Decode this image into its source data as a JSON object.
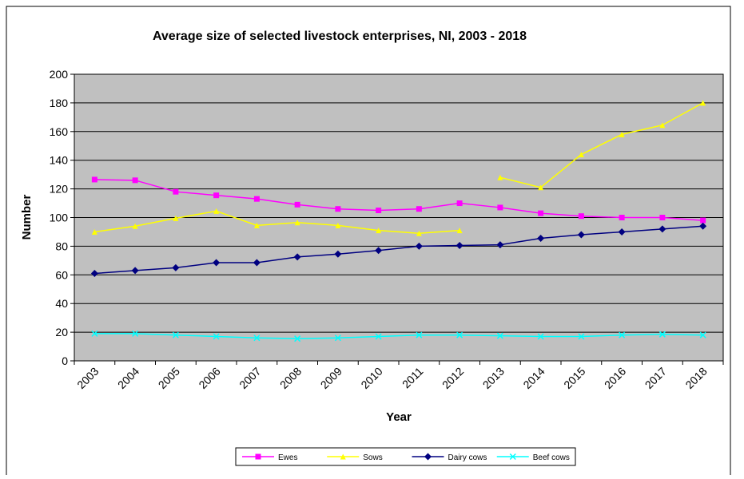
{
  "chart_data": {
    "type": "line",
    "title": "Average size of selected livestock enterprises, NI, 2003 - 2018",
    "x_label": "Year",
    "y_label": "Number",
    "categories": [
      "2003",
      "2004",
      "2005",
      "2006",
      "2007",
      "2008",
      "2009",
      "2010",
      "2011",
      "2012",
      "2013",
      "2014",
      "2015",
      "2016",
      "2017",
      "2018"
    ],
    "series": [
      {
        "name": "Ewes",
        "color": "#ff00ff",
        "marker": "square",
        "values": [
          126.5,
          126,
          118,
          115.5,
          113,
          109,
          106,
          105,
          106,
          110,
          107,
          103,
          101,
          100,
          100,
          98
        ]
      },
      {
        "name": "Sows",
        "color": "#ffff00",
        "marker": "triangle",
        "break_before": 10,
        "values": [
          90,
          94,
          99.5,
          104.5,
          94.5,
          96.5,
          94.5,
          91,
          89,
          91,
          128,
          121,
          144,
          158,
          164.5,
          180
        ]
      },
      {
        "name": "Dairy cows",
        "color": "#000080",
        "marker": "diamond",
        "values": [
          61,
          63,
          65,
          68.5,
          68.5,
          72.5,
          74.5,
          77,
          80,
          80.5,
          81,
          85.5,
          88,
          90,
          92,
          94
        ]
      },
      {
        "name": "Beef cows",
        "color": "#00ffff",
        "marker": "cross",
        "values": [
          19,
          19,
          18,
          17,
          16,
          15.5,
          16,
          17,
          18,
          18,
          17.5,
          17,
          17,
          18,
          18.5,
          18
        ]
      }
    ],
    "ylim": [
      0,
      200
    ],
    "yticks": [
      0,
      20,
      40,
      60,
      80,
      100,
      120,
      140,
      160,
      180,
      200
    ],
    "grid": true,
    "plot_background": "#c0c0c0",
    "legend": "bottom"
  }
}
